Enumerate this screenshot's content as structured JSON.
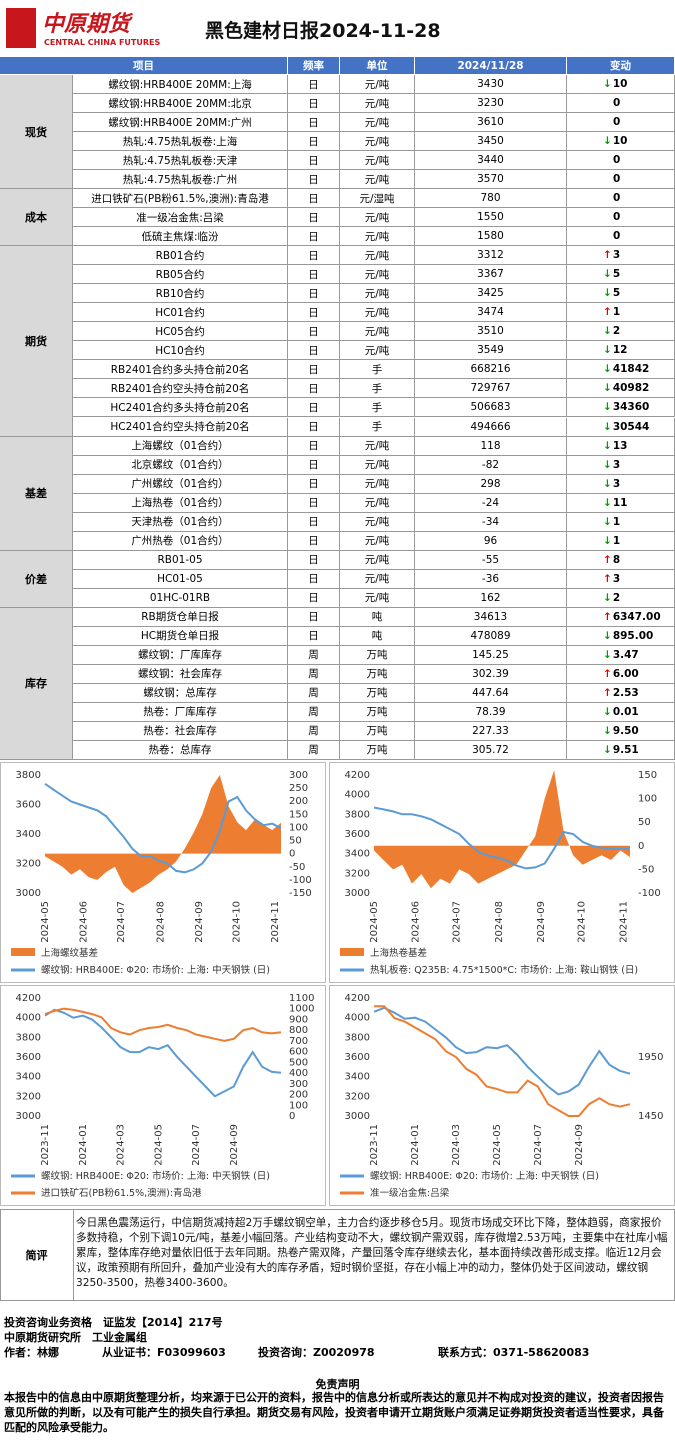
{
  "header": {
    "logo": "中原期货",
    "logo_en": "CENTRAL CHINA FUTURES",
    "title": "黑色建材日报2024-11-28"
  },
  "table": {
    "columns": [
      "项目",
      "频率",
      "单位",
      "2024/11/28",
      "变动"
    ],
    "groups": [
      {
        "name": "现货",
        "rows": [
          [
            "螺纹钢:HRB400E 20MM:上海",
            "日",
            "元/吨",
            "3430",
            "10",
            "down"
          ],
          [
            "螺纹钢:HRB400E 20MM:北京",
            "日",
            "元/吨",
            "3230",
            "0",
            "none"
          ],
          [
            "螺纹钢:HRB400E 20MM:广州",
            "日",
            "元/吨",
            "3610",
            "0",
            "none"
          ],
          [
            "热轧:4.75热轧板卷:上海",
            "日",
            "元/吨",
            "3450",
            "10",
            "down"
          ],
          [
            "热轧:4.75热轧板卷:天津",
            "日",
            "元/吨",
            "3440",
            "0",
            "none"
          ],
          [
            "热轧:4.75热轧板卷:广州",
            "日",
            "元/吨",
            "3570",
            "0",
            "none"
          ]
        ]
      },
      {
        "name": "成本",
        "rows": [
          [
            "进口铁矿石(PB粉61.5%,澳洲):青岛港",
            "日",
            "元/湿吨",
            "780",
            "0",
            "none"
          ],
          [
            "准一级冶金焦:吕梁",
            "日",
            "元/吨",
            "1550",
            "0",
            "none"
          ],
          [
            "低硫主焦煤:临汾",
            "日",
            "元/吨",
            "1580",
            "0",
            "none"
          ]
        ]
      },
      {
        "name": "期货",
        "rows": [
          [
            "RB01合约",
            "日",
            "元/吨",
            "3312",
            "3",
            "up"
          ],
          [
            "RB05合约",
            "日",
            "元/吨",
            "3367",
            "5",
            "down"
          ],
          [
            "RB10合约",
            "日",
            "元/吨",
            "3425",
            "5",
            "down"
          ],
          [
            "HC01合约",
            "日",
            "元/吨",
            "3474",
            "1",
            "up"
          ],
          [
            "HC05合约",
            "日",
            "元/吨",
            "3510",
            "2",
            "down"
          ],
          [
            "HC10合约",
            "日",
            "元/吨",
            "3549",
            "12",
            "down"
          ],
          [
            "RB2401合约多头持仓前20名",
            "日",
            "手",
            "668216",
            "41842",
            "down"
          ],
          [
            "RB2401合约空头持仓前20名",
            "日",
            "手",
            "729767",
            "40982",
            "down"
          ],
          [
            "HC2401合约多头持仓前20名",
            "日",
            "手",
            "506683",
            "34360",
            "down"
          ],
          [
            "HC2401合约空头持仓前20名",
            "日",
            "手",
            "494666",
            "30544",
            "down"
          ]
        ]
      },
      {
        "name": "基差",
        "rows": [
          [
            "上海螺纹（01合约）",
            "日",
            "元/吨",
            "118",
            "13",
            "down"
          ],
          [
            "北京螺纹（01合约）",
            "日",
            "元/吨",
            "-82",
            "3",
            "down"
          ],
          [
            "广州螺纹（01合约）",
            "日",
            "元/吨",
            "298",
            "3",
            "down"
          ],
          [
            "上海热卷（01合约）",
            "日",
            "元/吨",
            "-24",
            "11",
            "down"
          ],
          [
            "天津热卷（01合约）",
            "日",
            "元/吨",
            "-34",
            "1",
            "down"
          ],
          [
            "广州热卷（01合约）",
            "日",
            "元/吨",
            "96",
            "1",
            "down"
          ]
        ]
      },
      {
        "name": "价差",
        "rows": [
          [
            "RB01-05",
            "日",
            "元/吨",
            "-55",
            "8",
            "up"
          ],
          [
            "HC01-05",
            "日",
            "元/吨",
            "-36",
            "3",
            "up"
          ],
          [
            "01HC-01RB",
            "日",
            "元/吨",
            "162",
            "2",
            "down"
          ]
        ]
      },
      {
        "name": "库存",
        "rows": [
          [
            "RB期货仓单日报",
            "日",
            "吨",
            "34613",
            "6347.00",
            "up"
          ],
          [
            "HC期货仓单日报",
            "日",
            "吨",
            "478089",
            "895.00",
            "down"
          ],
          [
            "螺纹钢：厂库库存",
            "周",
            "万吨",
            "145.25",
            "3.47",
            "down"
          ],
          [
            "螺纹钢：社会库存",
            "周",
            "万吨",
            "302.39",
            "6.00",
            "up"
          ],
          [
            "螺纹钢：总库存",
            "周",
            "万吨",
            "447.64",
            "2.53",
            "up"
          ],
          [
            "热卷：厂库库存",
            "周",
            "万吨",
            "78.39",
            "0.01",
            "down"
          ],
          [
            "热卷：社会库存",
            "周",
            "万吨",
            "227.33",
            "9.50",
            "down"
          ],
          [
            "热卷：总库存",
            "周",
            "万吨",
            "305.72",
            "9.51",
            "down"
          ]
        ]
      }
    ]
  },
  "chart_data": [
    {
      "type": "line",
      "xlim": [
        0,
        27
      ],
      "xticks": [
        {
          "value": 0,
          "label": "2024-05"
        },
        {
          "value": 4.4,
          "label": "2024-06"
        },
        {
          "value": 8.7,
          "label": "2024-07"
        },
        {
          "value": 13.2,
          "label": "2024-08"
        },
        {
          "value": 17.6,
          "label": "2024-09"
        },
        {
          "value": 21.9,
          "label": "2024-10"
        },
        {
          "value": 26.3,
          "label": "2024-11"
        }
      ],
      "ylim": [
        3000,
        3800
      ],
      "yticks": [
        3000,
        3200,
        3400,
        3600,
        3800
      ],
      "y2lim": [
        -150,
        300
      ],
      "y2ticks": [
        -150,
        -100,
        -50,
        0,
        50,
        100,
        150,
        200,
        250,
        300
      ],
      "series": [
        {
          "name": "上海螺纹基差",
          "color": "#ed7d31",
          "axis": "y2",
          "style": "area",
          "values": [
            -10,
            -30,
            -50,
            -80,
            -60,
            -90,
            -100,
            -70,
            -50,
            -120,
            -150,
            -130,
            -110,
            -80,
            -60,
            -30,
            20,
            80,
            150,
            250,
            300,
            180,
            120,
            90,
            130,
            110,
            90,
            118
          ]
        },
        {
          "name": "螺纹钢: HRB400E: Φ20: 市场价: 上海: 中天钢铁 (日)",
          "color": "#5b9bd5",
          "axis": "y",
          "style": "line",
          "values": [
            3740,
            3700,
            3660,
            3620,
            3600,
            3580,
            3560,
            3520,
            3450,
            3380,
            3300,
            3250,
            3250,
            3220,
            3200,
            3150,
            3140,
            3160,
            3200,
            3280,
            3420,
            3620,
            3650,
            3560,
            3500,
            3460,
            3470,
            3440
          ]
        }
      ]
    },
    {
      "type": "line",
      "xlim": [
        0,
        27
      ],
      "xticks": [
        {
          "value": 0,
          "label": "2024-05"
        },
        {
          "value": 4.4,
          "label": "2024-06"
        },
        {
          "value": 8.7,
          "label": "2024-07"
        },
        {
          "value": 13.2,
          "label": "2024-08"
        },
        {
          "value": 17.6,
          "label": "2024-09"
        },
        {
          "value": 21.9,
          "label": "2024-10"
        },
        {
          "value": 26.3,
          "label": "2024-11"
        }
      ],
      "ylim": [
        3000,
        4200
      ],
      "yticks": [
        3000,
        3200,
        3400,
        3600,
        3800,
        4000,
        4200
      ],
      "y2lim": [
        -100,
        150
      ],
      "y2ticks": [
        -100,
        -50,
        0,
        50,
        100,
        150
      ],
      "series": [
        {
          "name": "上海热卷基差",
          "color": "#ed7d31",
          "axis": "y2",
          "style": "area",
          "values": [
            -10,
            -30,
            -50,
            -40,
            -80,
            -60,
            -90,
            -70,
            -80,
            -50,
            -60,
            -80,
            -70,
            -60,
            -50,
            -40,
            -10,
            20,
            100,
            160,
            30,
            -20,
            -40,
            -30,
            -20,
            -30,
            -10,
            -24
          ]
        },
        {
          "name": "热轧板卷: Q235B: 4.75*1500*C: 市场价: 上海: 鞍山钢铁 (日)",
          "color": "#5b9bd5",
          "axis": "y",
          "style": "line",
          "values": [
            3870,
            3850,
            3830,
            3800,
            3800,
            3780,
            3750,
            3700,
            3650,
            3600,
            3500,
            3420,
            3380,
            3360,
            3330,
            3280,
            3250,
            3260,
            3300,
            3450,
            3620,
            3600,
            3520,
            3480,
            3460,
            3450,
            3450,
            3450
          ]
        }
      ]
    },
    {
      "type": "line",
      "xlim": [
        0,
        25
      ],
      "xticks": [
        {
          "value": 0,
          "label": "2023-11"
        },
        {
          "value": 4,
          "label": "2024-01"
        },
        {
          "value": 8,
          "label": "2024-03"
        },
        {
          "value": 12,
          "label": "2024-05"
        },
        {
          "value": 16,
          "label": "2024-07"
        },
        {
          "value": 20,
          "label": "2024-09"
        }
      ],
      "ylim": [
        3000,
        4200
      ],
      "yticks": [
        3000,
        3200,
        3400,
        3600,
        3800,
        4000,
        4200
      ],
      "y2lim": [
        0,
        1100
      ],
      "y2ticks": [
        0,
        100,
        200,
        300,
        400,
        500,
        600,
        700,
        800,
        900,
        1000,
        1100
      ],
      "series": [
        {
          "name": "螺纹钢: HRB400E: Φ20: 市场价: 上海: 中天钢铁 (日)",
          "color": "#5b9bd5",
          "axis": "y",
          "style": "line",
          "values": [
            4020,
            4080,
            4050,
            4000,
            4020,
            3980,
            3900,
            3800,
            3700,
            3650,
            3650,
            3700,
            3680,
            3720,
            3600,
            3500,
            3400,
            3300,
            3200,
            3250,
            3300,
            3500,
            3650,
            3500,
            3450,
            3440
          ]
        },
        {
          "name": "进口铁矿石(PB粉61.5%,澳洲):青岛港",
          "color": "#ed7d31",
          "axis": "y2",
          "style": "line",
          "values": [
            950,
            980,
            1000,
            990,
            970,
            950,
            920,
            820,
            780,
            760,
            800,
            820,
            830,
            850,
            820,
            800,
            760,
            740,
            720,
            700,
            720,
            800,
            820,
            780,
            770,
            780
          ]
        }
      ]
    },
    {
      "type": "line",
      "xlim": [
        0,
        25
      ],
      "xticks": [
        {
          "value": 0,
          "label": "2023-11"
        },
        {
          "value": 4,
          "label": "2024-01"
        },
        {
          "value": 8,
          "label": "2024-03"
        },
        {
          "value": 12,
          "label": "2024-05"
        },
        {
          "value": 16,
          "label": "2024-07"
        },
        {
          "value": 20,
          "label": "2024-09"
        }
      ],
      "ylim": [
        3000,
        4200
      ],
      "yticks": [
        3000,
        3200,
        3400,
        3600,
        3800,
        4000,
        4200
      ],
      "y2lim": [
        1450,
        2450
      ],
      "y2ticks": [
        1450,
        1950
      ],
      "series": [
        {
          "name": "螺纹钢: HRB400E: Φ20: 市场价: 上海: 中天钢铁 (日)",
          "color": "#5b9bd5",
          "axis": "y",
          "style": "line",
          "values": [
            4060,
            4100,
            4050,
            3990,
            4000,
            3960,
            3880,
            3800,
            3700,
            3640,
            3650,
            3700,
            3690,
            3720,
            3620,
            3500,
            3400,
            3300,
            3220,
            3250,
            3320,
            3500,
            3660,
            3520,
            3460,
            3430
          ]
        },
        {
          "name": "准一级冶金焦:吕梁",
          "color": "#ed7d31",
          "axis": "y2",
          "style": "line",
          "values": [
            2380,
            2380,
            2280,
            2250,
            2200,
            2150,
            2100,
            2000,
            1950,
            1850,
            1800,
            1700,
            1680,
            1650,
            1650,
            1750,
            1700,
            1550,
            1500,
            1450,
            1450,
            1550,
            1600,
            1550,
            1530,
            1550
          ]
        }
      ]
    }
  ],
  "commentary": {
    "label": "简评",
    "text": "今日黑色震荡运行，中信期货减持超2万手螺纹钢空单，主力合约逐步移仓5月。现货市场成交环比下降，整体趋弱，商家报价多数持稳，个别下调10元/吨，基差小幅回落。产业结构变动不大，螺纹钢产需双弱，库存微增2.53万吨，主要集中在社库小幅累库，整体库存绝对量依旧低于去年同期。热卷产需双降，产量回落令库存继续去化，基本面持续改善形成支撑。临近12月会议，政策预期有所回升，叠加产业没有大的库存矛盾，短时钢价坚挺，存在小幅上冲的动力，整体仍处于区间波动，螺纹钢3250-3500，热卷3400-3600。"
  },
  "footer": {
    "qualification": "投资咨询业务资格　证监发【2014】217号",
    "institute": "中原期货研究所　工业金属组",
    "author": "作者：林娜",
    "certificate": "从业证书：F03099603",
    "consult": "投资咨询：Z0020978",
    "contact": "联系方式：0371-58620083"
  },
  "disclaimer": {
    "title": "免责声明",
    "text": "本报告中的信息由中原期货整理分析，均来源于已公开的资料，报告中的信息分析或所表达的意见并不构成对投资的建议，投资者因报告意见所做的判断，以及有可能产生的损失自行承担。期货交易有风险，投资者申请开立期货账户须满足证券期货投资者适当性要求，具备匹配的风险承受能力。"
  }
}
